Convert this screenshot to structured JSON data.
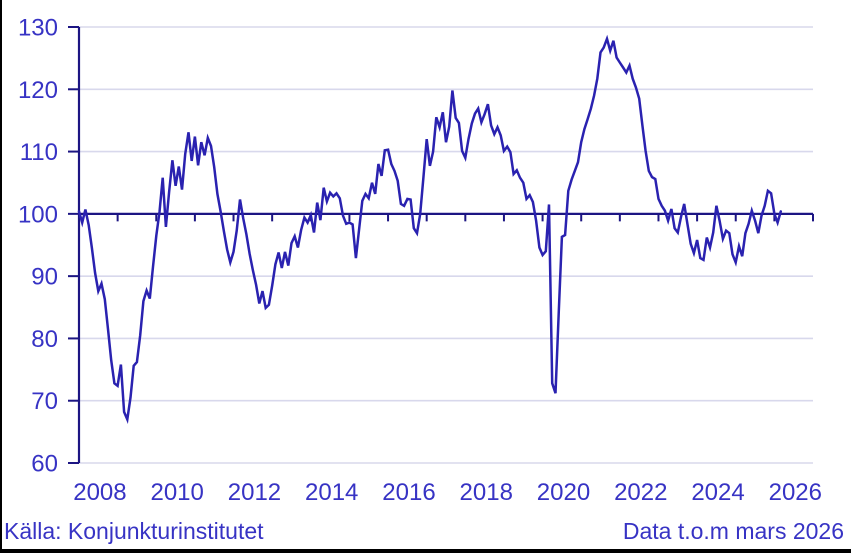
{
  "footer": {
    "source": "Källa: Konjunkturinstitutet",
    "note": "Data t.o.m mars 2026"
  },
  "chart_data": {
    "type": "line",
    "title": "",
    "xlabel": "",
    "ylabel": "",
    "ylim": [
      60,
      130
    ],
    "y_ticks": [
      130,
      120,
      110,
      100,
      90,
      80,
      70,
      60
    ],
    "x_tick_labels": [
      "2008",
      "2010",
      "2012",
      "2014",
      "2016",
      "2018",
      "2020",
      "2022",
      "2024",
      "2026"
    ],
    "x_start": "2008-01",
    "x_end": "2026-03",
    "frequency": "monthly",
    "reference_line": 100,
    "grid": true,
    "colors": {
      "line": "#2a22b0",
      "reference": "#1c1583",
      "grid": "#d8d8ec",
      "text": "#3733c4",
      "border": "#000000",
      "background": "#ffffff"
    },
    "values": [
      100.4,
      98.6,
      100.7,
      98.2,
      94.5,
      90.5,
      87.6,
      88.8,
      86.3,
      81.5,
      76.5,
      72.8,
      72.4,
      75.8,
      68.2,
      67.0,
      70.5,
      75.6,
      76.2,
      80.5,
      86.0,
      87.7,
      86.4,
      91.5,
      96.5,
      100.3,
      105.8,
      97.9,
      103.5,
      108.6,
      104.5,
      107.6,
      103.9,
      109.6,
      113.1,
      108.5,
      112.4,
      107.8,
      111.5,
      109.4,
      112.2,
      110.9,
      107.5,
      103.2,
      100.4,
      97.2,
      94.3,
      92.2,
      93.9,
      97.3,
      102.3,
      99.3,
      96.7,
      93.6,
      91.0,
      88.6,
      85.6,
      87.6,
      84.9,
      85.4,
      88.5,
      91.9,
      93.8,
      91.3,
      93.9,
      91.7,
      95.3,
      96.4,
      94.6,
      97.4,
      99.4,
      98.6,
      99.8,
      97.0,
      101.8,
      99.0,
      104.2,
      102.0,
      103.4,
      102.8,
      103.3,
      102.5,
      99.7,
      98.4,
      98.6,
      98.3,
      92.9,
      97.5,
      102.1,
      103.2,
      102.5,
      105.0,
      103.2,
      108.0,
      106.1,
      110.2,
      110.3,
      108.0,
      106.9,
      105.3,
      101.6,
      101.3,
      102.4,
      102.3,
      97.7,
      96.9,
      100.0,
      106.0,
      112.0,
      107.7,
      110.0,
      115.5,
      113.9,
      116.3,
      111.5,
      114.0,
      119.8,
      115.4,
      114.6,
      110.1,
      109.0,
      112.0,
      114.5,
      116.1,
      116.9,
      114.7,
      116.0,
      117.6,
      114.2,
      112.8,
      113.9,
      112.6,
      110.1,
      110.8,
      109.9,
      106.4,
      107.0,
      105.8,
      105.0,
      102.4,
      103.0,
      101.9,
      98.9,
      94.6,
      93.4,
      94.0,
      101.5,
      72.8,
      71.2,
      84.0,
      96.3,
      96.6,
      103.7,
      105.5,
      106.9,
      108.3,
      111.5,
      113.6,
      115.2,
      116.9,
      119.0,
      121.7,
      125.9,
      126.7,
      128.1,
      126.2,
      127.8,
      125.1,
      124.3,
      123.5,
      122.7,
      123.8,
      121.7,
      120.3,
      118.5,
      114.2,
      110.1,
      106.9,
      105.9,
      105.6,
      102.4,
      101.3,
      100.5,
      98.9,
      100.8,
      97.7,
      97.0,
      99.5,
      101.6,
      98.4,
      95.2,
      93.7,
      95.8,
      92.9,
      92.6,
      96.2,
      94.6,
      97.0,
      101.3,
      98.9,
      96.0,
      97.3,
      96.9,
      93.5,
      92.2,
      94.8,
      93.2,
      96.9,
      98.4,
      100.5,
      98.9,
      96.9,
      99.7,
      101.3,
      103.7,
      103.3,
      100.0,
      98.6,
      100.4
    ]
  }
}
